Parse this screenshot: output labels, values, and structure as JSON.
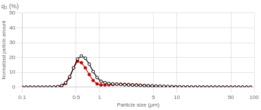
{
  "chart_data": {
    "type": "line",
    "title": "q₃ (%)",
    "xlabel": "Particle size (μm)",
    "ylabel": "Normalized particle amount",
    "log": "x",
    "grid": true,
    "xlim": [
      0.1,
      100
    ],
    "ylim": [
      0,
      50
    ],
    "xticks": [
      0.1,
      0.5,
      1,
      5,
      10,
      50,
      100
    ],
    "yticks": [
      0,
      10,
      20,
      30,
      40,
      50
    ],
    "x": [
      0.1,
      0.113,
      0.127,
      0.143,
      0.161,
      0.181,
      0.203,
      0.228,
      0.257,
      0.289,
      0.325,
      0.365,
      0.411,
      0.462,
      0.519,
      0.583,
      0.656,
      0.737,
      0.828,
      0.931,
      1.047,
      1.177,
      1.323,
      1.488,
      1.673,
      1.88,
      2.113,
      2.376,
      2.671,
      3.002,
      3.375,
      3.794,
      4.266,
      4.796,
      5.393,
      6.064,
      6.818,
      7.663,
      8.615,
      9.686,
      10.89,
      12.24,
      13.76,
      15.47,
      17.39,
      19.55,
      21.98,
      24.71,
      27.78,
      31.23,
      35.11,
      39.47,
      44.37,
      49.9,
      56.1,
      63.1,
      70.96,
      79.81,
      89.74
    ],
    "series": [
      {
        "color": "#000000",
        "marker": "open_circle",
        "values": [
          0.0,
          0.0,
          0.0,
          0.0,
          0.0,
          0.0,
          0.0,
          0.05,
          0.15,
          0.4,
          1.2,
          3.0,
          7.0,
          13.0,
          19.0,
          21.0,
          19.5,
          15.5,
          10.5,
          6.5,
          4.0,
          3.0,
          2.5,
          2.2,
          2.0,
          1.8,
          1.6,
          1.5,
          1.4,
          1.3,
          1.2,
          1.1,
          1.0,
          0.9,
          0.8,
          0.7,
          0.6,
          0.5,
          0.4,
          0.3,
          0.25,
          0.2,
          0.18,
          0.15,
          0.12,
          0.1,
          0.08,
          0.07,
          0.06,
          0.05,
          0.04,
          0.03,
          0.03,
          0.02,
          0.02,
          0.02,
          0.01,
          0.01,
          0.0
        ]
      },
      {
        "color": "#cc0000",
        "marker": "circle",
        "values": [
          0.0,
          0.0,
          0.0,
          0.0,
          0.0,
          0.0,
          0.0,
          0.0,
          0.05,
          0.2,
          0.8,
          2.5,
          6.5,
          13.0,
          17.5,
          16.5,
          13.0,
          8.5,
          4.5,
          2.2,
          1.5,
          1.5,
          1.6,
          1.8,
          2.0,
          2.0,
          1.9,
          1.8,
          1.6,
          1.5,
          1.3,
          1.1,
          0.9,
          0.8,
          0.6,
          0.5,
          0.4,
          0.3,
          0.25,
          0.2,
          0.15,
          0.12,
          0.1,
          0.08,
          0.07,
          0.05,
          0.04,
          0.03,
          0.03,
          0.02,
          0.02,
          0.01,
          0.01,
          0.01,
          0.0,
          0.0,
          0.0,
          0.0,
          0.0
        ]
      }
    ]
  }
}
